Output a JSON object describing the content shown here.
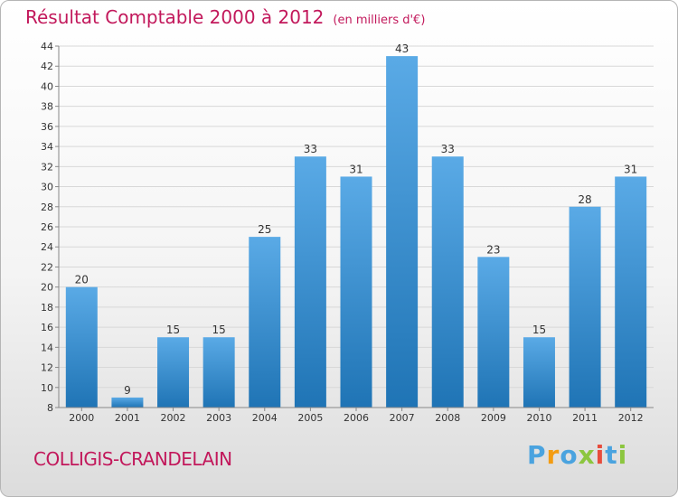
{
  "header": {
    "title": "Résultat Comptable 2000 à 2012",
    "subtitle": "(en milliers d'€)"
  },
  "footer": {
    "commune": "COLLIGIS-CRANDELAIN",
    "brand": "Proxiti",
    "brand_letters": [
      "P",
      "r",
      "o",
      "x",
      "i",
      "t",
      "i"
    ],
    "brand_colors": [
      "#4aa3df",
      "#f39c12",
      "#4aa3df",
      "#8cc63f",
      "#e74c3c",
      "#4aa3df",
      "#8cc63f"
    ]
  },
  "colors": {
    "title": "#c2185b",
    "bar_top": "#5aaae6",
    "bar_bottom": "#1f74b5",
    "grid": "#d8d8d8",
    "axis": "#888888"
  },
  "chart_data": {
    "type": "bar",
    "title": "Résultat Comptable 2000 à 2012",
    "unit": "(en milliers d'€)",
    "categories": [
      "2000",
      "2001",
      "2002",
      "2003",
      "2004",
      "2005",
      "2006",
      "2007",
      "2008",
      "2009",
      "2010",
      "2011",
      "2012"
    ],
    "values": [
      20,
      9,
      15,
      15,
      25,
      33,
      31,
      43,
      33,
      23,
      15,
      28,
      31
    ],
    "ylim": [
      8,
      44
    ],
    "yticks": [
      8,
      10,
      12,
      14,
      16,
      18,
      20,
      22,
      24,
      26,
      28,
      30,
      32,
      34,
      36,
      38,
      40,
      42,
      44
    ],
    "grid": true,
    "xlabel": "",
    "ylabel": ""
  }
}
